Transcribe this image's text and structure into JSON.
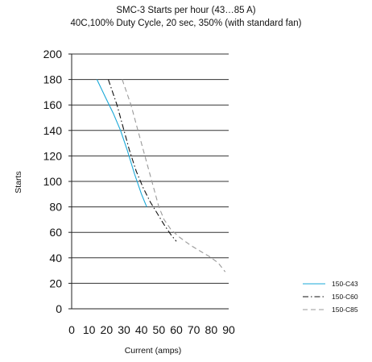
{
  "chart_data": {
    "type": "line",
    "title": "SMC-3 Starts per hour (43…85 A)",
    "subtitle": "40C,100% Duty Cycle, 20 sec, 350% (with standard fan)",
    "xlabel": "Current (amps)",
    "ylabel": "Starts",
    "xlim": [
      0,
      90
    ],
    "ylim": [
      0,
      200
    ],
    "xticks": [
      0,
      10,
      20,
      30,
      40,
      50,
      60,
      70,
      80,
      90
    ],
    "yticks": [
      0,
      20,
      40,
      60,
      80,
      100,
      120,
      140,
      160,
      180,
      200
    ],
    "grid": "horizontal",
    "legend_position": "bottom-right",
    "series": [
      {
        "name": "150-C43",
        "color": "#19a8d8",
        "dash": "solid",
        "points": [
          [
            14.5,
            180
          ],
          [
            19,
            167
          ],
          [
            24,
            153
          ],
          [
            28,
            140
          ],
          [
            32,
            124
          ],
          [
            36,
            106
          ],
          [
            40,
            90
          ],
          [
            43,
            80
          ]
        ]
      },
      {
        "name": "150-C60",
        "color": "#111111",
        "dash": "dashdot",
        "points": [
          [
            21,
            180
          ],
          [
            26,
            160
          ],
          [
            30,
            140
          ],
          [
            33,
            125
          ],
          [
            37,
            108
          ],
          [
            41,
            95
          ],
          [
            45,
            84
          ],
          [
            49,
            75
          ],
          [
            53,
            66
          ],
          [
            57,
            58
          ],
          [
            60,
            53
          ]
        ]
      },
      {
        "name": "150-C85",
        "color": "#999999",
        "dash": "dashed",
        "points": [
          [
            29,
            180
          ],
          [
            34,
            160
          ],
          [
            38,
            140
          ],
          [
            41,
            125
          ],
          [
            44,
            110
          ],
          [
            47,
            95
          ],
          [
            50,
            80
          ],
          [
            53,
            70
          ],
          [
            57,
            62
          ],
          [
            62,
            56
          ],
          [
            68,
            50
          ],
          [
            74,
            45
          ],
          [
            79,
            41
          ],
          [
            84,
            36
          ],
          [
            88,
            29
          ]
        ]
      }
    ]
  }
}
